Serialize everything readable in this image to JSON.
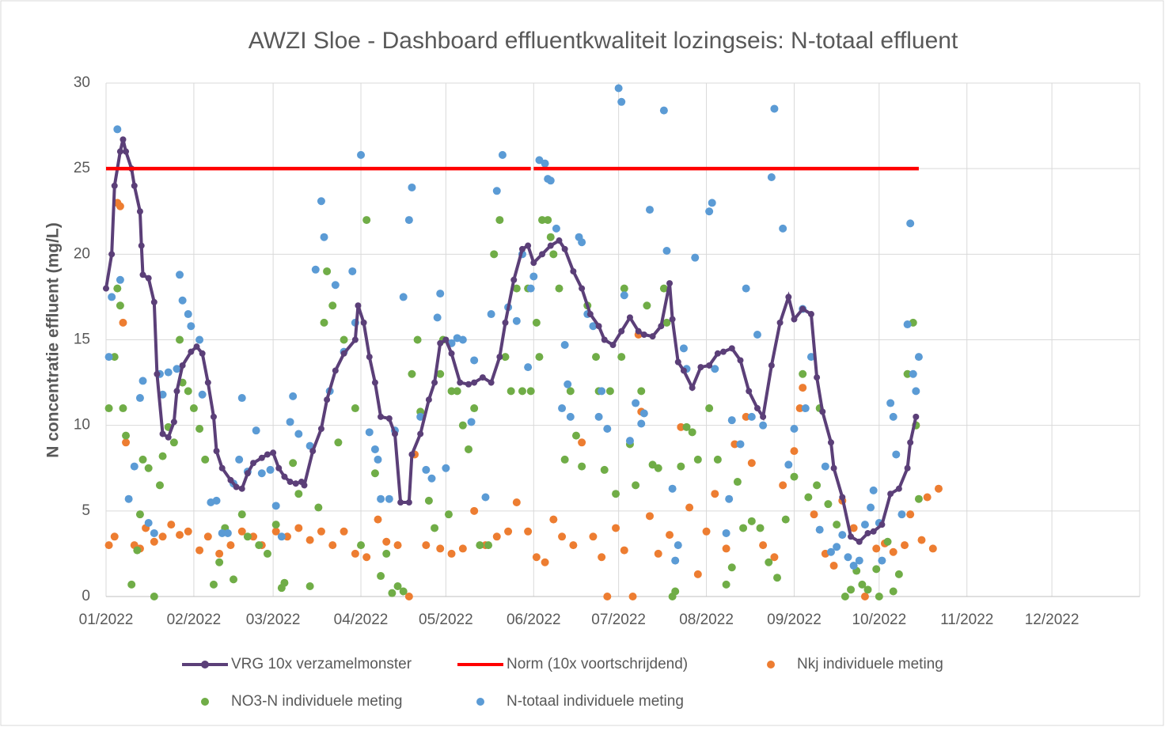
{
  "chart_data": {
    "type": "scatter",
    "title": "AWZI Sloe - Dashboard effluentkwaliteit lozingseis: N-totaal effluent",
    "y_label": "N concentratie effluent (mg/L)",
    "xlim": [
      0,
      365
    ],
    "xticks": [
      {
        "value": 0,
        "label": "01/2022"
      },
      {
        "value": 31,
        "label": "02/2022"
      },
      {
        "value": 59,
        "label": "03/2022"
      },
      {
        "value": 90,
        "label": "04/2022"
      },
      {
        "value": 120,
        "label": "05/2022"
      },
      {
        "value": 151,
        "label": "06/2022"
      },
      {
        "value": 181,
        "label": "07/2022"
      },
      {
        "value": 212,
        "label": "08/2022"
      },
      {
        "value": 243,
        "label": "09/2022"
      },
      {
        "value": 273,
        "label": "10/2022"
      },
      {
        "value": 304,
        "label": "11/2022"
      },
      {
        "value": 334,
        "label": "12/2022"
      }
    ],
    "ylim": [
      0,
      30
    ],
    "yticks": [
      0,
      5,
      10,
      15,
      20,
      25,
      30
    ],
    "grid": true,
    "series": [
      {
        "name": "Nkj individuele meting",
        "type": "scatter",
        "color": "#ed7d31",
        "x": [
          1,
          3,
          4,
          5,
          6,
          7,
          10,
          12,
          14,
          17,
          20,
          23,
          26,
          29,
          33,
          36,
          40,
          44,
          48,
          52,
          55,
          60,
          64,
          68,
          72,
          76,
          80,
          84,
          88,
          92,
          96,
          99,
          103,
          107,
          109,
          113,
          118,
          122,
          126,
          130,
          134,
          138,
          142,
          145,
          149,
          152,
          155,
          158,
          161,
          165,
          168,
          172,
          175,
          177,
          180,
          183,
          186,
          188,
          189,
          192,
          195,
          199,
          203,
          206,
          209,
          212,
          215,
          219,
          222,
          226,
          228,
          232,
          236,
          239,
          243,
          245,
          246,
          250,
          254,
          257,
          260,
          264,
          268,
          272,
          275,
          278,
          282,
          284,
          286,
          288,
          290,
          292,
          294
        ],
        "values": [
          3,
          3.5,
          23,
          22.8,
          16,
          9,
          3,
          2.8,
          4,
          3.2,
          3.5,
          4.2,
          3.6,
          3.8,
          2.7,
          3.5,
          2.5,
          3,
          3.8,
          3.5,
          3,
          3.8,
          3.5,
          4,
          3.3,
          3.8,
          3,
          3.8,
          2.5,
          2.3,
          4.5,
          3.2,
          3,
          0,
          8.3,
          3,
          2.8,
          2.5,
          2.8,
          5,
          3,
          3.5,
          3.8,
          5.5,
          3.8,
          2.3,
          2,
          4.5,
          3.5,
          3,
          9,
          3.5,
          2.3,
          0,
          4,
          2.7,
          0,
          15.3,
          10.8,
          4.7,
          2.5,
          3.6,
          9.9,
          5.2,
          1.3,
          3.8,
          6,
          2.8,
          8.9,
          10.5,
          7.8,
          3,
          2.3,
          6.5,
          8.5,
          11,
          12.2,
          4.8,
          2.5,
          1.8,
          5.6,
          4,
          0,
          2.8,
          3.1,
          2.6,
          3,
          4.8,
          10,
          3.3,
          5.8,
          2.8,
          6.3
        ]
      },
      {
        "name": "NO3-N individuele meting",
        "type": "scatter",
        "color": "#70ad47",
        "x": [
          1,
          3,
          4,
          5,
          6,
          7,
          9,
          11,
          12,
          13,
          15,
          17,
          19,
          20,
          22,
          24,
          26,
          27,
          29,
          31,
          33,
          35,
          38,
          40,
          42,
          45,
          48,
          50,
          54,
          57,
          60,
          62,
          63,
          66,
          68,
          72,
          75,
          77,
          78,
          80,
          82,
          84,
          88,
          90,
          92,
          95,
          97,
          99,
          101,
          103,
          105,
          108,
          110,
          111,
          114,
          116,
          118,
          119,
          121,
          122,
          124,
          126,
          128,
          130,
          132,
          135,
          137,
          139,
          141,
          143,
          145,
          147,
          149,
          150,
          152,
          153,
          154,
          156,
          157,
          158,
          160,
          162,
          164,
          166,
          168,
          170,
          173,
          174,
          176,
          178,
          180,
          182,
          183,
          185,
          187,
          189,
          191,
          193,
          195,
          197,
          198,
          200,
          201,
          203,
          205,
          207,
          209,
          213,
          216,
          219,
          221,
          223,
          225,
          228,
          231,
          234,
          237,
          240,
          243,
          246,
          248,
          251,
          252,
          255,
          258,
          261,
          263,
          265,
          267,
          269,
          272,
          273,
          276,
          278,
          280,
          283,
          285,
          286,
          287
        ],
        "values": [
          11,
          14,
          18,
          17,
          11,
          9.4,
          0.7,
          2.7,
          4.8,
          8,
          7.5,
          0,
          6.5,
          8.2,
          9.9,
          9,
          15,
          12.5,
          12,
          11,
          9.8,
          8,
          0.7,
          2,
          4,
          1,
          4.8,
          3.5,
          3,
          2.5,
          4.2,
          0.5,
          0.8,
          7.8,
          6,
          0.6,
          5.2,
          16,
          19,
          17,
          9,
          15,
          11,
          3,
          22,
          7.2,
          1.2,
          2.5,
          0.2,
          0.6,
          0.3,
          13,
          15,
          10.8,
          5.6,
          4,
          13,
          15,
          4.8,
          12,
          12,
          10,
          8.6,
          11,
          3,
          3,
          20,
          22,
          14,
          12,
          18,
          12,
          18,
          12,
          16,
          14,
          22,
          22,
          21,
          20,
          18,
          8,
          12,
          9.4,
          7.6,
          17,
          14,
          12,
          7.4,
          12,
          6,
          14,
          18,
          8.9,
          6.5,
          12,
          17,
          7.7,
          7.5,
          18,
          16,
          0,
          0.3,
          7.6,
          9.9,
          9.6,
          8,
          11,
          8,
          0.7,
          1.7,
          6.7,
          4,
          4.4,
          4,
          2,
          1.1,
          4.5,
          7,
          13,
          5.8,
          6.5,
          11,
          5.4,
          4.2,
          0,
          0.4,
          1.5,
          0.7,
          0.4,
          1.6,
          0,
          3.2,
          0.3,
          1.3,
          13,
          16,
          10,
          5.7
        ]
      },
      {
        "name": "N-totaal individuele meting",
        "type": "scatter",
        "color": "#5b9bd5",
        "x": [
          1,
          2,
          4,
          5,
          8,
          10,
          12,
          13,
          15,
          17,
          19,
          20,
          22,
          25,
          26,
          27,
          29,
          30,
          33,
          34,
          37,
          39,
          41,
          43,
          45,
          47,
          48,
          50,
          53,
          55,
          58,
          60,
          62,
          65,
          66,
          68,
          72,
          74,
          76,
          77,
          79,
          81,
          84,
          87,
          88,
          90,
          93,
          95,
          96,
          97,
          100,
          102,
          105,
          107,
          108,
          111,
          113,
          115,
          117,
          118,
          120,
          122,
          124,
          126,
          129,
          130,
          134,
          136,
          138,
          140,
          142,
          145,
          147,
          149,
          150,
          151,
          153,
          155,
          156,
          157,
          159,
          161,
          162,
          163,
          164,
          167,
          168,
          170,
          172,
          174,
          175,
          177,
          181,
          182,
          183,
          185,
          187,
          189,
          190,
          192,
          197,
          198,
          200,
          201,
          202,
          204,
          205,
          208,
          213,
          214,
          215,
          219,
          220,
          221,
          224,
          226,
          228,
          230,
          232,
          235,
          236,
          239,
          241,
          243,
          246,
          247,
          249,
          252,
          254,
          256,
          258,
          260,
          262,
          264,
          266,
          268,
          270,
          271,
          273,
          274,
          277,
          278,
          279,
          281,
          283,
          284,
          285,
          286,
          287
        ],
        "values": [
          14,
          17.5,
          27.3,
          18.5,
          5.7,
          7.6,
          11.6,
          12.6,
          4.3,
          3.7,
          13,
          11.8,
          13.1,
          13.3,
          18.8,
          17.3,
          16.5,
          15.8,
          15,
          11.8,
          5.5,
          5.6,
          3.7,
          3.7,
          6.6,
          8,
          11.6,
          7.3,
          9.7,
          7.2,
          7.4,
          5.3,
          3.5,
          10.2,
          11.7,
          9.5,
          8.8,
          19.1,
          23.1,
          21,
          12,
          18.2,
          14.3,
          19,
          16,
          25.8,
          9.6,
          8.6,
          8,
          5.7,
          5.7,
          9.7,
          17.5,
          22,
          23.9,
          10.5,
          7.4,
          6.9,
          16.3,
          17.7,
          7.5,
          14.8,
          15.1,
          15,
          10.2,
          13.8,
          5.8,
          16.5,
          23.7,
          25.8,
          16.9,
          16.1,
          20,
          13.4,
          18,
          18.7,
          25.5,
          25.3,
          24.4,
          24.3,
          21.5,
          11,
          14.7,
          12.4,
          10.5,
          21,
          20.7,
          16.5,
          15.8,
          10.5,
          12,
          9.8,
          29.7,
          28.9,
          17.6,
          9.1,
          11.3,
          10.1,
          10.7,
          22.6,
          28.4,
          20.2,
          6.3,
          2.1,
          3,
          14.5,
          13.3,
          19.8,
          22.5,
          23,
          13.3,
          3.7,
          5.7,
          10.3,
          8.9,
          18,
          10.5,
          15.3,
          10,
          24.5,
          28.5,
          21.5,
          7.7,
          9.8,
          16.8,
          11,
          14,
          3.9,
          7.6,
          2.6,
          2.9,
          3.6,
          2.3,
          1.8,
          2.1,
          4.2,
          5.2,
          6.2,
          4.3,
          2.1,
          11.3,
          10.5,
          8.3,
          4.8,
          15.9,
          21.8,
          13,
          12,
          14
        ]
      },
      {
        "name": "VRG 10x verzamelmonster",
        "type": "line",
        "marker": true,
        "color": "#5b3f78",
        "x": [
          0,
          2,
          3,
          5,
          6,
          7,
          9,
          10,
          12,
          12.5,
          13,
          15,
          17,
          18,
          20,
          22,
          24,
          25,
          27,
          30,
          32,
          34,
          36,
          38,
          39,
          41,
          44,
          46,
          48,
          50,
          52,
          55,
          57,
          59,
          61,
          63,
          65,
          67,
          69,
          70,
          73,
          76,
          78,
          81,
          84,
          88,
          89,
          91,
          93,
          95,
          97,
          100,
          102,
          104,
          107,
          108,
          111,
          114,
          116,
          118,
          120,
          122,
          125,
          128,
          130,
          133,
          136,
          139,
          141,
          144,
          147,
          149,
          151,
          154,
          157,
          160,
          162,
          165,
          168,
          171,
          174,
          176,
          179,
          182,
          185,
          188,
          190,
          193,
          196,
          199,
          200,
          202,
          204,
          207,
          210,
          213,
          216,
          218,
          221,
          224,
          227,
          230,
          232,
          235,
          238,
          241,
          243,
          246,
          249,
          251,
          253,
          256,
          257,
          260,
          263,
          266,
          269,
          271,
          274,
          277,
          280,
          283,
          284,
          286
        ],
        "values": [
          18,
          20,
          24,
          26,
          26.7,
          26,
          25,
          24,
          22.5,
          20.5,
          18.8,
          18.6,
          17.2,
          13,
          9.5,
          9.3,
          10.2,
          12,
          13.5,
          14.3,
          14.6,
          14.2,
          12.5,
          10.5,
          8.5,
          7.5,
          6.8,
          6.4,
          6.3,
          7.2,
          7.8,
          8.1,
          8.3,
          8.4,
          7.5,
          7,
          6.7,
          6.6,
          6.7,
          6.5,
          8.5,
          9.8,
          11.5,
          13.2,
          14.2,
          15,
          17,
          16,
          14,
          12.5,
          10.5,
          10.4,
          9.5,
          5.5,
          5.5,
          8.3,
          9.5,
          11.5,
          12.5,
          14.8,
          15,
          14.2,
          12.5,
          12.4,
          12.5,
          12.8,
          12.5,
          14,
          16,
          18.5,
          20.3,
          20.5,
          19.5,
          20,
          20.5,
          20.8,
          20.3,
          19,
          18,
          16.5,
          15.8,
          15,
          14.7,
          15.5,
          16.3,
          15.5,
          15.3,
          15.2,
          15.8,
          18.3,
          16.2,
          13.7,
          13.2,
          12.2,
          13.4,
          13.5,
          14.2,
          14.3,
          14.5,
          13.8,
          12,
          11,
          10.5,
          13.5,
          16,
          17.5,
          16.2,
          16.8,
          16.5,
          12.8,
          10.8,
          9,
          7.5,
          5.8,
          3.5,
          3.2,
          3.7,
          3.8,
          4.2,
          6,
          6.3,
          7.5,
          9,
          10.5
        ]
      },
      {
        "name": "Norm (10x voortschrijdend)",
        "type": "line",
        "color": "#ff0000",
        "x": [
          0,
          150,
          150.5,
          151,
          287
        ],
        "values": [
          25,
          25,
          null,
          25,
          25
        ]
      }
    ],
    "legend_order": [
      3,
      4,
      0,
      1,
      2
    ]
  }
}
